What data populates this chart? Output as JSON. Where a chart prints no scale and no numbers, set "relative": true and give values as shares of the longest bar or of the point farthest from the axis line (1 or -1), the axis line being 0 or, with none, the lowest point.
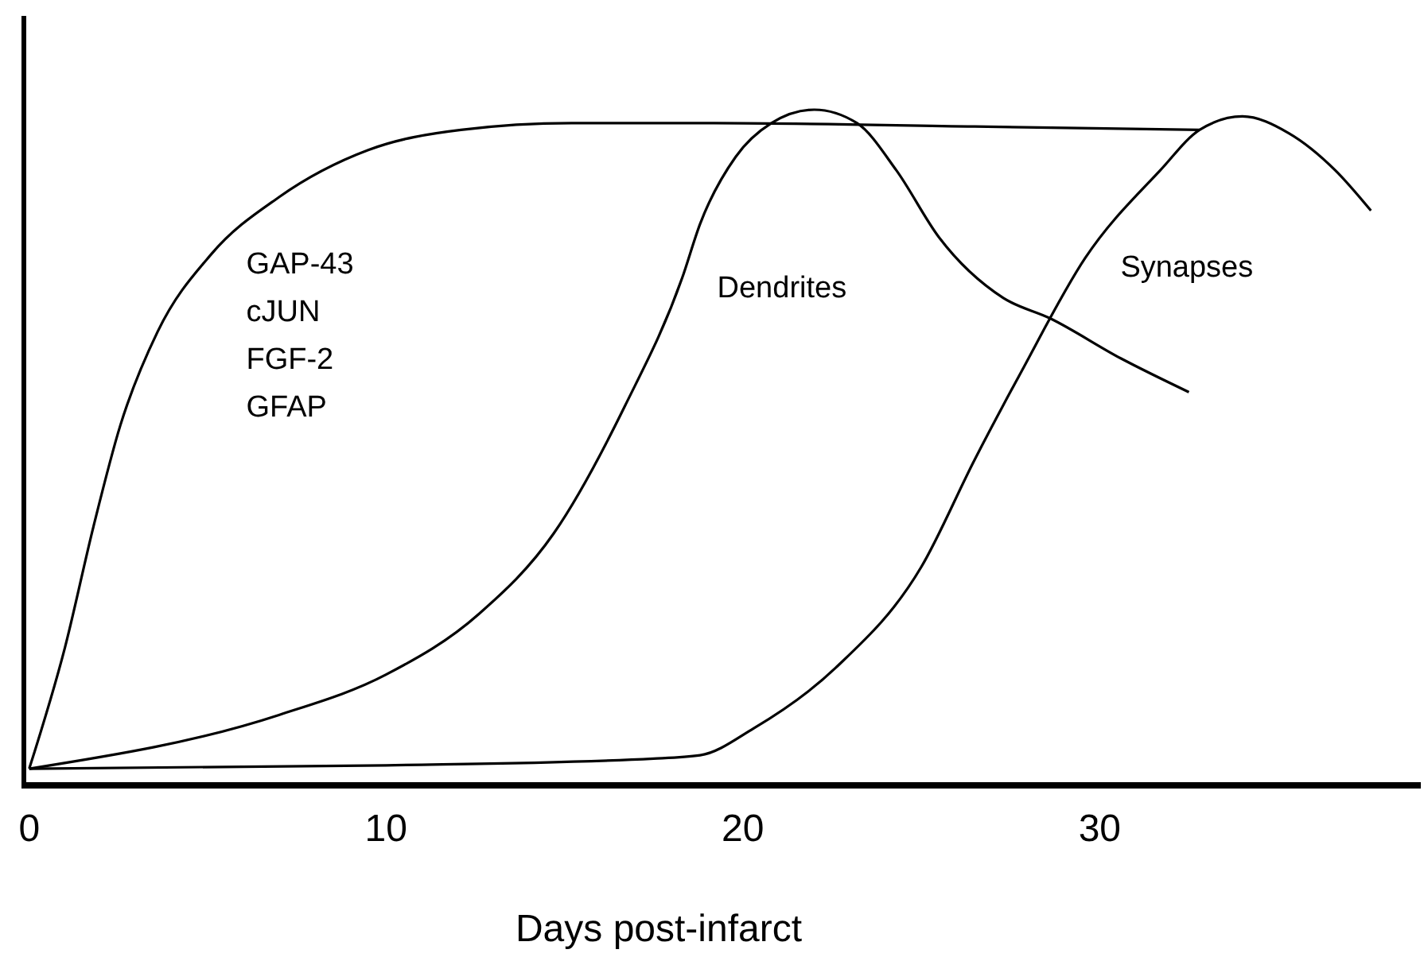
{
  "chart_data": {
    "type": "line",
    "relative": true,
    "xlabel": "Days post-infarct",
    "xlim": [
      -0.15,
      39
    ],
    "xticks": [
      0,
      10,
      20,
      30
    ],
    "legend": false,
    "grid": false,
    "marker": "none",
    "line_style": "solid",
    "series": [
      {
        "name": "GAP-43\ncJUN\nFGF-2\nGFAP",
        "color": "#000000",
        "x": [
          0,
          1,
          1.8,
          2.55,
          3.6,
          5.1,
          7,
          9.5,
          12.1,
          15.2,
          19.2,
          26.5,
          32.8
        ],
        "values": [
          0.02,
          0.2,
          0.38,
          0.53,
          0.67,
          0.785,
          0.87,
          0.94,
          0.97,
          0.98,
          0.98,
          0.975,
          0.97
        ]
      },
      {
        "name": "Dendrites",
        "color": "#000000",
        "x": [
          0,
          7,
          10,
          12.6,
          14.7,
          16.7,
          18.3,
          18.8,
          19.8,
          20.8,
          22,
          23.2,
          24.3,
          25.5,
          27.3,
          28.6,
          30.6,
          32.5
        ],
        "values": [
          0.02,
          0.1,
          0.16,
          0.25,
          0.37,
          0.56,
          0.75,
          0.83,
          0.93,
          0.98,
          1,
          0.98,
          0.91,
          0.81,
          0.72,
          0.69,
          0.63,
          0.58
        ]
      },
      {
        "name": "Synapses",
        "color": "#000000",
        "x": [
          0,
          10,
          17.5,
          18.8,
          20.3,
          22.6,
          25,
          26.5,
          27.8,
          29.6,
          31.7,
          32.8,
          34,
          35.3,
          36.6,
          37.6
        ],
        "values": [
          0.02,
          0.025,
          0.035,
          0.04,
          0.08,
          0.17,
          0.32,
          0.48,
          0.61,
          0.78,
          0.91,
          0.97,
          0.99,
          0.965,
          0.91,
          0.85
        ]
      }
    ]
  }
}
